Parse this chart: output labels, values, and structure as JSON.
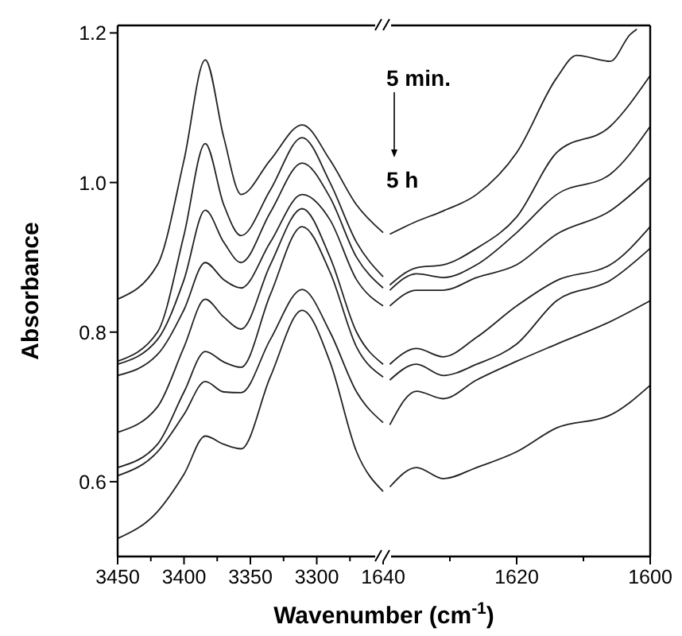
{
  "chart_data": [
    {
      "type": "line",
      "xlabel": "Wavenumber (cm$^{-1}$)",
      "ylabel": "Absorbance",
      "xlim": [
        3450,
        3250
      ],
      "ylim": [
        0.5,
        1.21
      ],
      "xticks": [
        3450,
        {
          "value": 3425,
          "label": null
        },
        3400,
        {
          "value": 3375,
          "label": null
        },
        3350,
        {
          "value": 3325,
          "label": null
        },
        3300,
        {
          "value": 3275,
          "label": null
        }
      ],
      "yticks": [
        0.6,
        0.8,
        {
          "value": 1,
          "label": "1.0"
        },
        1.2
      ],
      "x": [
        3450,
        3420,
        3400,
        3384,
        3370,
        3357,
        3335,
        3311,
        3290,
        3270,
        3250
      ],
      "series": [
        {
          "color": "#222222",
          "values": [
            0.844,
            0.89,
            1.03,
            1.164,
            1.06,
            0.984,
            1.03,
            1.077,
            1.03,
            0.97,
            0.933
          ]
        },
        {
          "color": "#222222",
          "values": [
            0.761,
            0.8,
            0.93,
            1.052,
            0.97,
            0.929,
            0.99,
            1.06,
            1.0,
            0.92,
            0.874
          ]
        },
        {
          "color": "#222222",
          "values": [
            0.757,
            0.79,
            0.87,
            0.963,
            0.92,
            0.893,
            0.96,
            1.026,
            0.98,
            0.9,
            0.859
          ]
        },
        {
          "color": "#222222",
          "values": [
            0.742,
            0.77,
            0.83,
            0.893,
            0.87,
            0.859,
            0.92,
            0.984,
            0.95,
            0.87,
            0.835
          ]
        },
        {
          "color": "#222222",
          "values": [
            0.666,
            0.7,
            0.78,
            0.844,
            0.82,
            0.804,
            0.89,
            0.965,
            0.9,
            0.8,
            0.757
          ]
        },
        {
          "color": "#222222",
          "values": [
            0.619,
            0.65,
            0.72,
            0.774,
            0.76,
            0.753,
            0.85,
            0.941,
            0.88,
            0.78,
            0.74
          ]
        },
        {
          "color": "#222222",
          "values": [
            0.608,
            0.64,
            0.69,
            0.734,
            0.72,
            0.719,
            0.79,
            0.857,
            0.8,
            0.72,
            0.679
          ]
        },
        {
          "color": "#222222",
          "values": [
            0.524,
            0.56,
            0.61,
            0.661,
            0.65,
            0.644,
            0.74,
            0.829,
            0.76,
            0.64,
            0.587
          ]
        }
      ]
    },
    {
      "type": "line",
      "xlim": [
        1640,
        1600
      ],
      "ylim": [
        0.5,
        1.21
      ],
      "tick_labels": "x",
      "xticks": [
        1640,
        {
          "value": 1630,
          "label": null
        },
        1620,
        {
          "value": 1610,
          "label": null
        },
        1600
      ],
      "annotations": [
        "5 min.",
        "5 h"
      ],
      "x": [
        1639,
        1635,
        1631,
        1626,
        1620,
        1614,
        1606,
        1600
      ],
      "series": [
        {
          "color": "#222222",
          "x": [
            1639,
            1635,
            1631,
            1626,
            1620,
            1614,
            1611,
            1606,
            1603,
            1602
          ],
          "values": [
            0.931,
            0.948,
            0.962,
            0.984,
            1.04,
            1.14,
            1.17,
            1.162,
            1.198,
            1.205
          ]
        },
        {
          "color": "#222222",
          "values": [
            0.863,
            0.886,
            0.89,
            0.912,
            0.954,
            1.04,
            1.075,
            1.143
          ]
        },
        {
          "color": "#222222",
          "values": [
            0.856,
            0.878,
            0.873,
            0.89,
            0.933,
            0.984,
            1.011,
            1.075
          ]
        },
        {
          "color": "#222222",
          "values": [
            0.835,
            0.856,
            0.856,
            0.873,
            0.89,
            0.931,
            0.962,
            1.007
          ]
        },
        {
          "color": "#222222",
          "values": [
            0.757,
            0.778,
            0.767,
            0.793,
            0.835,
            0.869,
            0.89,
            0.941
          ]
        },
        {
          "color": "#222222",
          "values": [
            0.736,
            0.757,
            0.742,
            0.757,
            0.784,
            0.842,
            0.869,
            0.912
          ]
        },
        {
          "color": "#222222",
          "values": [
            0.676,
            0.721,
            0.711,
            0.736,
            0.761,
            0.784,
            0.814,
            0.842
          ]
        },
        {
          "color": "#222222",
          "values": [
            0.593,
            0.619,
            0.604,
            0.619,
            0.64,
            0.672,
            0.689,
            0.729
          ]
        }
      ]
    }
  ]
}
